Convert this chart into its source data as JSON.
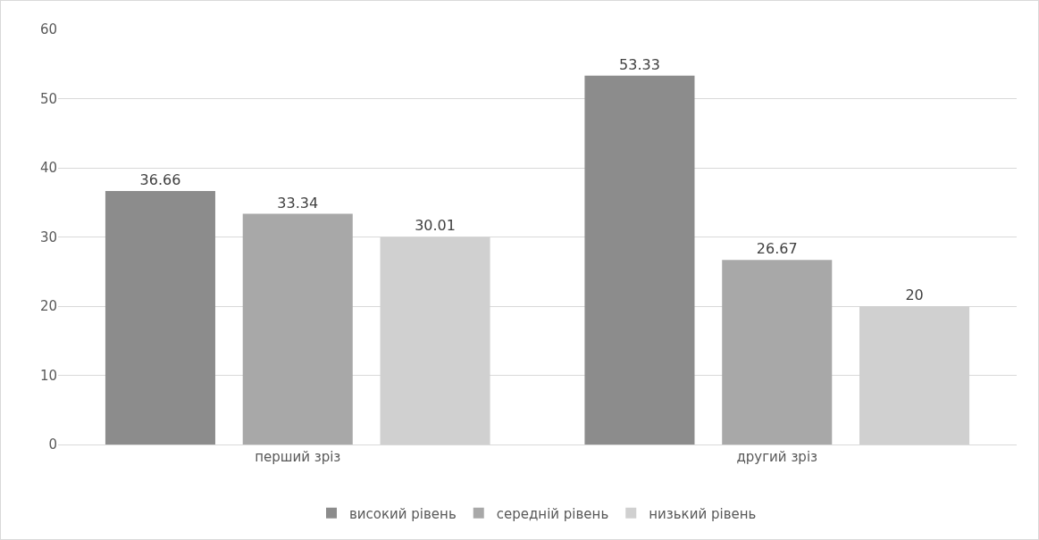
{
  "chart_data": {
    "type": "bar",
    "categories": [
      "перший зріз",
      "другий зріз"
    ],
    "series": [
      {
        "name": "високий рівень",
        "color": "#8c8c8c",
        "values": [
          36.66,
          53.33
        ]
      },
      {
        "name": "середній рівень",
        "color": "#a8a8a8",
        "values": [
          33.34,
          26.67
        ]
      },
      {
        "name": "низький рівень",
        "color": "#d0d0d0",
        "values": [
          30.01,
          20
        ]
      }
    ],
    "ylim": [
      0,
      60
    ],
    "yticks": [
      0,
      10,
      20,
      30,
      40,
      50,
      60
    ],
    "grid": "y",
    "legend": "bottom",
    "data_labels": true
  }
}
